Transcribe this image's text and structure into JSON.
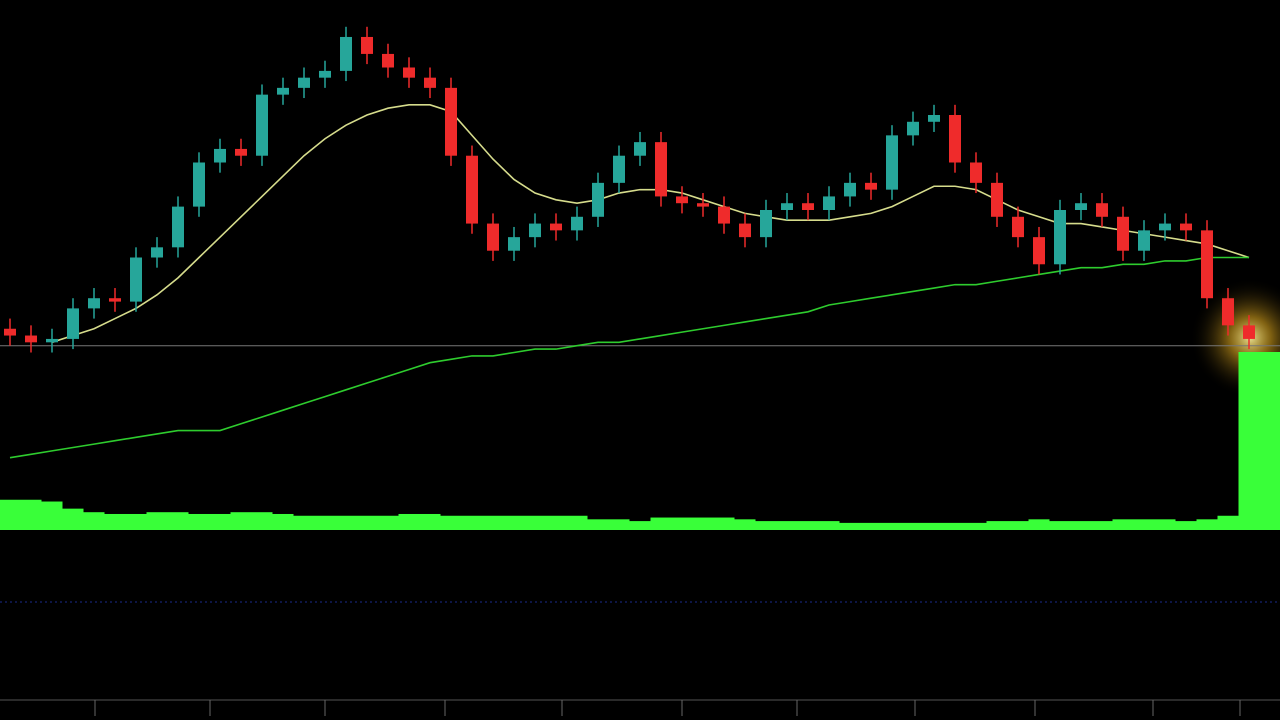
{
  "chart_data": {
    "type": "candlestick",
    "open": [
      9,
      7,
      5,
      6,
      15,
      18,
      17,
      30,
      33,
      45,
      58,
      62,
      60,
      78,
      80,
      83,
      85,
      95,
      90,
      86,
      83,
      80,
      60,
      40,
      32,
      36,
      40,
      38,
      42,
      52,
      60,
      64,
      48,
      46,
      45,
      40,
      36,
      44,
      46,
      44,
      48,
      52,
      50,
      66,
      70,
      72,
      58,
      52,
      42,
      36,
      28,
      44,
      46,
      42,
      32,
      38,
      40,
      38,
      18,
      10
    ],
    "high": [
      12,
      10,
      9,
      18,
      21,
      21,
      33,
      36,
      48,
      61,
      65,
      65,
      81,
      83,
      86,
      88,
      98,
      98,
      93,
      89,
      86,
      83,
      63,
      43,
      39,
      43,
      43,
      45,
      55,
      63,
      67,
      67,
      51,
      49,
      48,
      43,
      47,
      49,
      49,
      51,
      55,
      55,
      69,
      73,
      75,
      75,
      61,
      55,
      45,
      39,
      47,
      49,
      49,
      45,
      41,
      43,
      43,
      41,
      21,
      13
    ],
    "low": [
      4,
      2,
      2,
      3,
      12,
      14,
      14,
      27,
      30,
      42,
      55,
      57,
      57,
      75,
      77,
      80,
      82,
      87,
      83,
      80,
      77,
      57,
      37,
      29,
      29,
      33,
      35,
      35,
      39,
      49,
      57,
      45,
      43,
      42,
      37,
      33,
      33,
      41,
      41,
      41,
      45,
      47,
      47,
      63,
      67,
      55,
      49,
      39,
      33,
      25,
      25,
      41,
      39,
      29,
      29,
      35,
      35,
      15,
      7,
      3
    ],
    "close": [
      7,
      5,
      6,
      15,
      18,
      17,
      30,
      33,
      45,
      58,
      62,
      60,
      78,
      80,
      83,
      85,
      95,
      90,
      86,
      83,
      80,
      60,
      40,
      32,
      36,
      40,
      38,
      42,
      52,
      60,
      64,
      48,
      46,
      45,
      40,
      36,
      44,
      46,
      44,
      48,
      52,
      50,
      66,
      70,
      72,
      58,
      52,
      42,
      36,
      28,
      44,
      46,
      42,
      32,
      38,
      40,
      38,
      18,
      10,
      6
    ],
    "up_color": "#26a69a",
    "down_color": "#ef2b2b",
    "ylim": [
      -40,
      100
    ],
    "price_line": 4,
    "lines": [
      {
        "color": "#d6dc8c",
        "values": [
          null,
          null,
          5,
          7,
          9,
          12,
          15,
          19,
          24,
          30,
          36,
          42,
          48,
          54,
          60,
          65,
          69,
          72,
          74,
          75,
          75,
          73,
          66,
          59,
          53,
          49,
          47,
          46,
          47,
          49,
          50,
          50,
          49,
          47,
          45,
          43,
          42,
          41,
          41,
          41,
          42,
          43,
          45,
          48,
          51,
          51,
          50,
          47,
          44,
          42,
          40,
          40,
          39,
          38,
          37,
          36,
          35,
          34,
          32,
          30
        ]
      },
      {
        "color": "#2ecc2e",
        "values": [
          -29,
          -28,
          -27,
          -26,
          -25,
          -24,
          -23,
          -22,
          -21,
          -21,
          -21,
          -19,
          -17,
          -15,
          -13,
          -11,
          -9,
          -7,
          -5,
          -3,
          -1,
          0,
          1,
          1,
          2,
          3,
          3,
          4,
          5,
          5,
          6,
          7,
          8,
          9,
          10,
          11,
          12,
          13,
          14,
          16,
          17,
          18,
          19,
          20,
          21,
          22,
          22,
          23,
          24,
          25,
          26,
          27,
          27,
          28,
          28,
          29,
          29,
          30,
          30,
          30
        ]
      }
    ],
    "volume": {
      "color": "#39ff39",
      "ylim": [
        0,
        100
      ],
      "values": [
        17,
        17,
        16,
        12,
        10,
        9,
        9,
        10,
        10,
        9,
        9,
        10,
        10,
        9,
        8,
        8,
        8,
        8,
        8,
        9,
        9,
        8,
        8,
        8,
        8,
        8,
        8,
        8,
        6,
        6,
        5,
        7,
        7,
        7,
        7,
        6,
        5,
        5,
        5,
        5,
        4,
        4,
        4,
        4,
        4,
        4,
        4,
        5,
        5,
        6,
        5,
        5,
        5,
        6,
        6,
        6,
        5,
        6,
        8,
        100
      ]
    }
  }
}
